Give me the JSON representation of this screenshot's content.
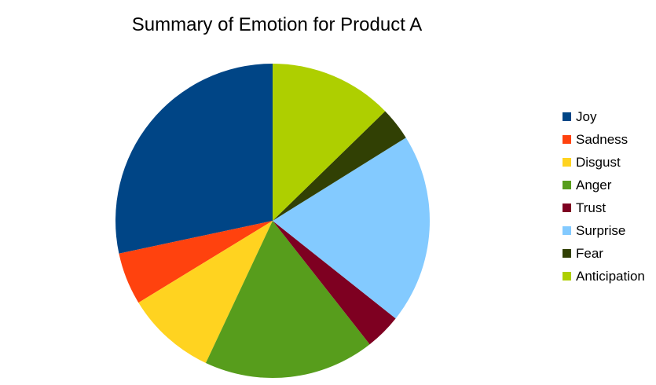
{
  "chart_data": {
    "type": "pie",
    "title": "Summary of Emotion for Product A",
    "legend_position": "right",
    "start": "12 o'clock",
    "direction": "counter-clockwise",
    "categories": [
      "Joy",
      "Sadness",
      "Disgust",
      "Anger",
      "Trust",
      "Surprise",
      "Fear",
      "Anticipation"
    ],
    "values": [
      29,
      5.5,
      9.5,
      18,
      3.8,
      20,
      3.5,
      13
    ],
    "colors": [
      "#004586",
      "#ff420e",
      "#ffd320",
      "#579d1c",
      "#7e0021",
      "#83caff",
      "#314004",
      "#aecf00"
    ]
  }
}
